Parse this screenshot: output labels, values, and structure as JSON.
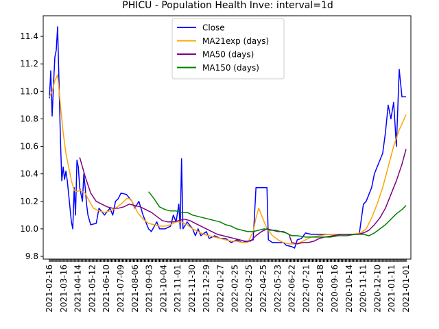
{
  "chart_data": {
    "type": "line",
    "title": "PHICU - Population Health Inve: interval=1d",
    "xlabel": "",
    "ylabel": "",
    "ylim": [
      9.78,
      11.55
    ],
    "yticks": [
      9.8,
      10.0,
      10.2,
      10.4,
      10.6,
      10.8,
      11.0,
      11.2,
      11.4
    ],
    "xticks": [
      "2021-02-16",
      "2021-03-16",
      "2021-04-14",
      "2021-05-12",
      "2021-06-10",
      "2021-07-09",
      "2021-08-06",
      "2021-09-03",
      "2021-10-04",
      "2021-11-01",
      "2021-11-30",
      "2021-12-29",
      "2022-01-27",
      "2022-02-25",
      "2022-03-25",
      "2022-04-25",
      "2022-05-23",
      "2022-06-22",
      "2022-07-21",
      "2022-08-18",
      "2020-09-16",
      "2020-10-14",
      "2020-11-11",
      "2020-12-10",
      "2021-01-11",
      "2021-01-01"
    ],
    "grid": false,
    "legend": "top-center",
    "n_points": 260,
    "series": [
      {
        "name": "Close",
        "color": "#0000ff",
        "points": [
          [
            0,
            10.95
          ],
          [
            1,
            11.15
          ],
          [
            2,
            10.82
          ],
          [
            3,
            11.05
          ],
          [
            4,
            11.25
          ],
          [
            5,
            11.3
          ],
          [
            6,
            11.47
          ],
          [
            7,
            11.05
          ],
          [
            8,
            10.65
          ],
          [
            9,
            10.35
          ],
          [
            10,
            10.45
          ],
          [
            11,
            10.36
          ],
          [
            12,
            10.42
          ],
          [
            13,
            10.35
          ],
          [
            14,
            10.25
          ],
          [
            15,
            10.15
          ],
          [
            16,
            10.05
          ],
          [
            17,
            10.0
          ],
          [
            18,
            10.3
          ],
          [
            19,
            10.1
          ],
          [
            20,
            10.5
          ],
          [
            21,
            10.45
          ],
          [
            22,
            10.3
          ],
          [
            23,
            10.25
          ],
          [
            24,
            10.2
          ],
          [
            25,
            10.4
          ],
          [
            26,
            10.3
          ],
          [
            27,
            10.18
          ],
          [
            28,
            10.1
          ],
          [
            30,
            10.03
          ],
          [
            34,
            10.04
          ],
          [
            36,
            10.15
          ],
          [
            40,
            10.1
          ],
          [
            44,
            10.15
          ],
          [
            46,
            10.1
          ],
          [
            48,
            10.2
          ],
          [
            50,
            10.22
          ],
          [
            52,
            10.26
          ],
          [
            56,
            10.25
          ],
          [
            60,
            10.2
          ],
          [
            62,
            10.15
          ],
          [
            65,
            10.2
          ],
          [
            68,
            10.1
          ],
          [
            70,
            10.05
          ],
          [
            72,
            10.0
          ],
          [
            74,
            9.98
          ],
          [
            78,
            10.05
          ],
          [
            80,
            10.0
          ],
          [
            84,
            10.0
          ],
          [
            88,
            10.02
          ],
          [
            90,
            10.1
          ],
          [
            92,
            10.05
          ],
          [
            94,
            10.18
          ],
          [
            95,
            10.0
          ],
          [
            96,
            10.51
          ],
          [
            97,
            10.0
          ],
          [
            100,
            10.05
          ],
          [
            104,
            10.0
          ],
          [
            106,
            9.95
          ],
          [
            108,
            10.0
          ],
          [
            110,
            9.95
          ],
          [
            114,
            9.98
          ],
          [
            116,
            9.93
          ],
          [
            120,
            9.95
          ],
          [
            124,
            9.93
          ],
          [
            128,
            9.93
          ],
          [
            132,
            9.9
          ],
          [
            136,
            9.92
          ],
          [
            140,
            9.9
          ],
          [
            144,
            9.91
          ],
          [
            148,
            9.92
          ],
          [
            150,
            10.3
          ],
          [
            152,
            10.3
          ],
          [
            156,
            10.3
          ],
          [
            158,
            10.3
          ],
          [
            159,
            9.92
          ],
          [
            162,
            9.9
          ],
          [
            166,
            9.9
          ],
          [
            170,
            9.9
          ],
          [
            172,
            9.88
          ],
          [
            176,
            9.87
          ],
          [
            178,
            9.86
          ],
          [
            180,
            9.92
          ],
          [
            183,
            9.93
          ],
          [
            186,
            9.97
          ],
          [
            190,
            9.96
          ],
          [
            195,
            9.96
          ],
          [
            200,
            9.96
          ],
          [
            205,
            9.96
          ],
          [
            210,
            9.96
          ],
          [
            215,
            9.96
          ],
          [
            220,
            9.96
          ],
          [
            225,
            9.96
          ],
          [
            228,
            10.18
          ],
          [
            230,
            10.2
          ],
          [
            232,
            10.25
          ],
          [
            234,
            10.3
          ],
          [
            236,
            10.4
          ],
          [
            238,
            10.45
          ],
          [
            240,
            10.5
          ],
          [
            242,
            10.55
          ],
          [
            244,
            10.7
          ],
          [
            246,
            10.9
          ],
          [
            248,
            10.8
          ],
          [
            250,
            10.92
          ],
          [
            252,
            10.6
          ],
          [
            254,
            11.16
          ],
          [
            256,
            10.96
          ],
          [
            259,
            10.96
          ]
        ]
      },
      {
        "name": "MA21exp (days)",
        "color": "#ffa500",
        "points": [
          [
            0,
            10.96
          ],
          [
            2,
            11.0
          ],
          [
            4,
            11.08
          ],
          [
            6,
            11.12
          ],
          [
            8,
            10.9
          ],
          [
            10,
            10.7
          ],
          [
            12,
            10.55
          ],
          [
            14,
            10.45
          ],
          [
            16,
            10.35
          ],
          [
            18,
            10.28
          ],
          [
            20,
            10.27
          ],
          [
            22,
            10.28
          ],
          [
            24,
            10.27
          ],
          [
            26,
            10.26
          ],
          [
            28,
            10.22
          ],
          [
            32,
            10.15
          ],
          [
            36,
            10.13
          ],
          [
            40,
            10.12
          ],
          [
            44,
            10.13
          ],
          [
            48,
            10.15
          ],
          [
            52,
            10.18
          ],
          [
            56,
            10.22
          ],
          [
            58,
            10.22
          ],
          [
            60,
            10.2
          ],
          [
            64,
            10.12
          ],
          [
            68,
            10.07
          ],
          [
            72,
            10.04
          ],
          [
            76,
            10.03
          ],
          [
            80,
            10.02
          ],
          [
            84,
            10.02
          ],
          [
            88,
            10.03
          ],
          [
            92,
            10.05
          ],
          [
            96,
            10.05
          ],
          [
            100,
            10.03
          ],
          [
            104,
            10.0
          ],
          [
            108,
            9.98
          ],
          [
            112,
            9.96
          ],
          [
            116,
            9.95
          ],
          [
            120,
            9.94
          ],
          [
            124,
            9.93
          ],
          [
            128,
            9.92
          ],
          [
            132,
            9.91
          ],
          [
            136,
            9.91
          ],
          [
            140,
            9.9
          ],
          [
            144,
            9.9
          ],
          [
            148,
            9.98
          ],
          [
            150,
            10.08
          ],
          [
            152,
            10.15
          ],
          [
            154,
            10.1
          ],
          [
            156,
            10.05
          ],
          [
            158,
            10.0
          ],
          [
            162,
            9.95
          ],
          [
            166,
            9.92
          ],
          [
            170,
            9.9
          ],
          [
            174,
            9.89
          ],
          [
            178,
            9.89
          ],
          [
            182,
            9.9
          ],
          [
            186,
            9.92
          ],
          [
            190,
            9.94
          ],
          [
            196,
            9.95
          ],
          [
            202,
            9.96
          ],
          [
            208,
            9.96
          ],
          [
            214,
            9.96
          ],
          [
            220,
            9.96
          ],
          [
            226,
            9.97
          ],
          [
            230,
            10.0
          ],
          [
            234,
            10.08
          ],
          [
            238,
            10.18
          ],
          [
            242,
            10.3
          ],
          [
            246,
            10.45
          ],
          [
            250,
            10.6
          ],
          [
            254,
            10.72
          ],
          [
            259,
            10.83
          ]
        ]
      },
      {
        "name": "MA50 (days)",
        "color": "#800080",
        "points": [
          [
            22,
            10.52
          ],
          [
            26,
            10.38
          ],
          [
            30,
            10.26
          ],
          [
            34,
            10.2
          ],
          [
            38,
            10.18
          ],
          [
            42,
            10.16
          ],
          [
            46,
            10.15
          ],
          [
            50,
            10.15
          ],
          [
            54,
            10.16
          ],
          [
            58,
            10.18
          ],
          [
            62,
            10.17
          ],
          [
            66,
            10.16
          ],
          [
            70,
            10.14
          ],
          [
            74,
            10.12
          ],
          [
            78,
            10.09
          ],
          [
            82,
            10.06
          ],
          [
            86,
            10.05
          ],
          [
            90,
            10.05
          ],
          [
            94,
            10.06
          ],
          [
            98,
            10.07
          ],
          [
            102,
            10.06
          ],
          [
            106,
            10.04
          ],
          [
            110,
            10.02
          ],
          [
            114,
            10.0
          ],
          [
            118,
            9.98
          ],
          [
            122,
            9.96
          ],
          [
            126,
            9.95
          ],
          [
            130,
            9.94
          ],
          [
            134,
            9.93
          ],
          [
            138,
            9.92
          ],
          [
            142,
            9.91
          ],
          [
            146,
            9.91
          ],
          [
            150,
            9.95
          ],
          [
            154,
            9.98
          ],
          [
            158,
            10.0
          ],
          [
            162,
            9.99
          ],
          [
            166,
            9.98
          ],
          [
            170,
            9.98
          ],
          [
            174,
            9.96
          ],
          [
            176,
            9.9
          ],
          [
            180,
            9.89
          ],
          [
            184,
            9.9
          ],
          [
            188,
            9.9
          ],
          [
            192,
            9.91
          ],
          [
            196,
            9.93
          ],
          [
            200,
            9.94
          ],
          [
            206,
            9.95
          ],
          [
            212,
            9.96
          ],
          [
            218,
            9.96
          ],
          [
            224,
            9.96
          ],
          [
            228,
            9.97
          ],
          [
            232,
            9.99
          ],
          [
            236,
            10.03
          ],
          [
            240,
            10.08
          ],
          [
            244,
            10.15
          ],
          [
            248,
            10.25
          ],
          [
            252,
            10.35
          ],
          [
            256,
            10.47
          ],
          [
            259,
            10.58
          ]
        ]
      },
      {
        "name": "MA150 (days)",
        "color": "#008000",
        "points": [
          [
            72,
            10.27
          ],
          [
            76,
            10.22
          ],
          [
            80,
            10.16
          ],
          [
            84,
            10.14
          ],
          [
            88,
            10.13
          ],
          [
            92,
            10.13
          ],
          [
            96,
            10.12
          ],
          [
            100,
            10.12
          ],
          [
            104,
            10.1
          ],
          [
            108,
            10.09
          ],
          [
            112,
            10.08
          ],
          [
            116,
            10.07
          ],
          [
            120,
            10.06
          ],
          [
            124,
            10.05
          ],
          [
            128,
            10.03
          ],
          [
            132,
            10.02
          ],
          [
            136,
            10.0
          ],
          [
            140,
            9.99
          ],
          [
            144,
            9.98
          ],
          [
            148,
            9.98
          ],
          [
            152,
            9.99
          ],
          [
            156,
            10.0
          ],
          [
            160,
            9.99
          ],
          [
            164,
            9.99
          ],
          [
            168,
            9.98
          ],
          [
            172,
            9.97
          ],
          [
            176,
            9.95
          ],
          [
            180,
            9.95
          ],
          [
            186,
            9.94
          ],
          [
            192,
            9.94
          ],
          [
            198,
            9.94
          ],
          [
            204,
            9.94
          ],
          [
            210,
            9.95
          ],
          [
            216,
            9.95
          ],
          [
            222,
            9.96
          ],
          [
            228,
            9.96
          ],
          [
            232,
            9.95
          ],
          [
            236,
            9.97
          ],
          [
            240,
            10.0
          ],
          [
            244,
            10.03
          ],
          [
            248,
            10.07
          ],
          [
            252,
            10.11
          ],
          [
            256,
            10.14
          ],
          [
            259,
            10.17
          ]
        ]
      }
    ]
  }
}
